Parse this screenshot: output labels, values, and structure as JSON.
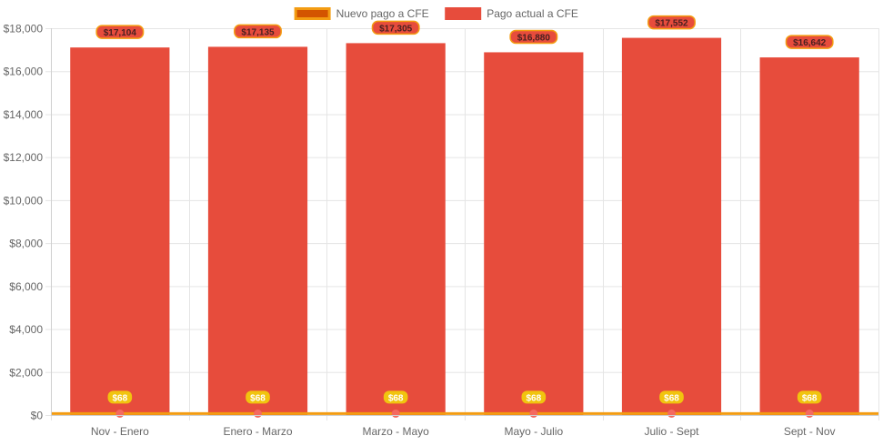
{
  "chart_data": {
    "type": "bar",
    "categories": [
      "Nov - Enero",
      "Enero - Marzo",
      "Marzo - Mayo",
      "Mayo - Julio",
      "Julio - Sept",
      "Sept - Nov"
    ],
    "series": [
      {
        "name": "Nuevo pago a CFE",
        "kind": "line",
        "values": [
          68,
          68,
          68,
          68,
          68,
          68
        ],
        "labels": [
          "$68",
          "$68",
          "$68",
          "$68",
          "$68",
          "$68"
        ],
        "color": "#f39c12",
        "fill": "#d35400",
        "point_color": "#f4695f",
        "label_bg": "#f1c40f",
        "label_color": "#ffffff"
      },
      {
        "name": "Pago actual a CFE",
        "kind": "bar",
        "values": [
          17104,
          17135,
          17305,
          16880,
          17552,
          16642
        ],
        "labels": [
          "$17,104",
          "$17,135",
          "$17,305",
          "$16,880",
          "$17,552",
          "$16,642"
        ],
        "color": "#e74c3c",
        "label_bg": "#e74c3c",
        "label_border": "#f39c12",
        "label_color": "#4a2020"
      }
    ],
    "ylim": [
      0,
      18000
    ],
    "yticks": [
      0,
      2000,
      4000,
      6000,
      8000,
      10000,
      12000,
      14000,
      16000,
      18000
    ],
    "ytick_labels": [
      "$0",
      "$2,000",
      "$4,000",
      "$6,000",
      "$8,000",
      "$10,000",
      "$12,000",
      "$14,000",
      "$16,000",
      "$18,000"
    ],
    "grid": true,
    "legend_position": "top-center",
    "title": "",
    "xlabel": "",
    "ylabel": ""
  }
}
